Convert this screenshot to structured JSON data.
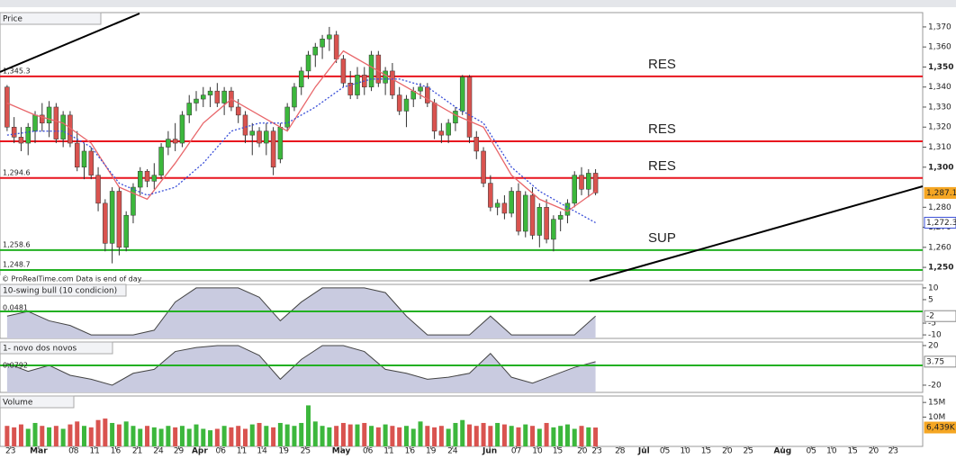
{
  "chart_data": [
    {
      "type": "candlestick",
      "title": "Price",
      "source": "© ProRealTime.com  Data is end of day",
      "xlim": [
        -0.5,
        130.7
      ],
      "ylim": [
        1243.3,
        1376.7
      ],
      "yticks": [
        {
          "value": 1370,
          "label": "1,370"
        },
        {
          "value": 1360,
          "label": "1,360"
        },
        {
          "value": 1350,
          "label": "1,350"
        },
        {
          "value": 1340,
          "label": "1,340"
        },
        {
          "value": 1330,
          "label": "1,330"
        },
        {
          "value": 1320,
          "label": "1,320"
        },
        {
          "value": 1310,
          "label": "1,310"
        },
        {
          "value": 1300,
          "label": "1,300"
        },
        {
          "value": 1280,
          "label": "1,280"
        },
        {
          "value": 1270,
          "label": "1,270"
        },
        {
          "value": 1260,
          "label": "1,260"
        },
        {
          "value": 1250,
          "label": "1,250"
        }
      ],
      "up_color": "#3cb73c",
      "down_color": "#d9534f",
      "candles": [
        [
          1340,
          1341,
          1318,
          1320
        ],
        [
          1320,
          1325,
          1312,
          1315
        ],
        [
          1315,
          1320,
          1308,
          1312
        ],
        [
          1312,
          1322,
          1306,
          1320
        ],
        [
          1318,
          1328,
          1312,
          1326
        ],
        [
          1326,
          1332,
          1318,
          1322
        ],
        [
          1322,
          1333,
          1315,
          1330
        ],
        [
          1330,
          1332,
          1312,
          1314
        ],
        [
          1314,
          1328,
          1310,
          1326
        ],
        [
          1326,
          1328,
          1310,
          1312
        ],
        [
          1312,
          1318,
          1298,
          1300
        ],
        [
          1300,
          1312,
          1294,
          1308
        ],
        [
          1308,
          1310,
          1294,
          1296
        ],
        [
          1296,
          1300,
          1278,
          1282
        ],
        [
          1282,
          1284,
          1258,
          1262
        ],
        [
          1262,
          1290,
          1252,
          1288
        ],
        [
          1288,
          1290,
          1256,
          1260
        ],
        [
          1260,
          1278,
          1258,
          1276
        ],
        [
          1276,
          1292,
          1272,
          1290
        ],
        [
          1290,
          1300,
          1286,
          1298
        ],
        [
          1298,
          1299,
          1290,
          1293
        ],
        [
          1293,
          1302,
          1289,
          1296
        ],
        [
          1296,
          1312,
          1294,
          1310
        ],
        [
          1310,
          1318,
          1306,
          1314
        ],
        [
          1314,
          1322,
          1308,
          1312
        ],
        [
          1312,
          1328,
          1310,
          1326
        ],
        [
          1326,
          1336,
          1322,
          1332
        ],
        [
          1332,
          1338,
          1328,
          1334
        ],
        [
          1334,
          1340,
          1330,
          1336
        ],
        [
          1336,
          1340,
          1330,
          1338
        ],
        [
          1338,
          1342,
          1330,
          1332
        ],
        [
          1332,
          1340,
          1326,
          1338
        ],
        [
          1338,
          1340,
          1328,
          1330
        ],
        [
          1330,
          1334,
          1322,
          1326
        ],
        [
          1326,
          1328,
          1312,
          1316
        ],
        [
          1316,
          1322,
          1306,
          1318
        ],
        [
          1318,
          1320,
          1310,
          1312
        ],
        [
          1312,
          1322,
          1306,
          1318
        ],
        [
          1318,
          1320,
          1296,
          1300
        ],
        [
          1304,
          1322,
          1302,
          1320
        ],
        [
          1320,
          1332,
          1318,
          1330
        ],
        [
          1330,
          1342,
          1328,
          1340
        ],
        [
          1340,
          1350,
          1336,
          1348
        ],
        [
          1348,
          1358,
          1344,
          1356
        ],
        [
          1356,
          1362,
          1350,
          1360
        ],
        [
          1360,
          1366,
          1354,
          1364
        ],
        [
          1364,
          1370,
          1358,
          1366
        ],
        [
          1366,
          1368,
          1352,
          1354
        ],
        [
          1354,
          1356,
          1340,
          1342
        ],
        [
          1342,
          1348,
          1334,
          1336
        ],
        [
          1336,
          1350,
          1334,
          1346
        ],
        [
          1346,
          1350,
          1336,
          1340
        ],
        [
          1340,
          1358,
          1338,
          1356
        ],
        [
          1356,
          1358,
          1340,
          1342
        ],
        [
          1342,
          1350,
          1336,
          1348
        ],
        [
          1348,
          1352,
          1334,
          1336
        ],
        [
          1336,
          1340,
          1326,
          1328
        ],
        [
          1328,
          1336,
          1320,
          1334
        ],
        [
          1334,
          1340,
          1330,
          1338
        ],
        [
          1338,
          1342,
          1334,
          1340
        ],
        [
          1340,
          1342,
          1330,
          1332
        ],
        [
          1332,
          1334,
          1314,
          1318
        ],
        [
          1318,
          1322,
          1312,
          1316
        ],
        [
          1316,
          1324,
          1312,
          1322
        ],
        [
          1322,
          1330,
          1318,
          1328
        ],
        [
          1328,
          1346,
          1326,
          1345
        ],
        [
          1345,
          1346,
          1312,
          1315
        ],
        [
          1315,
          1318,
          1304,
          1308
        ],
        [
          1308,
          1310,
          1290,
          1292
        ],
        [
          1292,
          1296,
          1278,
          1280
        ],
        [
          1280,
          1284,
          1276,
          1282
        ],
        [
          1282,
          1286,
          1274,
          1277
        ],
        [
          1277,
          1290,
          1275,
          1288
        ],
        [
          1288,
          1292,
          1266,
          1268
        ],
        [
          1268,
          1288,
          1265,
          1286
        ],
        [
          1286,
          1290,
          1264,
          1266
        ],
        [
          1266,
          1282,
          1260,
          1280
        ],
        [
          1280,
          1284,
          1262,
          1264
        ],
        [
          1264,
          1276,
          1258,
          1274
        ],
        [
          1274,
          1278,
          1268,
          1276
        ],
        [
          1276,
          1284,
          1272,
          1282
        ],
        [
          1282,
          1298,
          1280,
          1296
        ],
        [
          1296,
          1300,
          1286,
          1289
        ],
        [
          1289,
          1299,
          1285,
          1297
        ],
        [
          1297,
          1299,
          1286,
          1287.14
        ]
      ],
      "series": [
        {
          "color": "#e8666a",
          "style": "solid",
          "x": [
            0,
            4,
            8,
            12,
            16,
            20,
            24,
            28,
            32,
            36,
            40,
            44,
            48,
            52,
            56,
            60,
            64,
            68,
            72,
            76,
            80,
            84
          ],
          "values": [
            1332,
            1326,
            1322,
            1312,
            1290,
            1284,
            1302,
            1322,
            1334,
            1326,
            1318,
            1340,
            1358,
            1350,
            1342,
            1334,
            1326,
            1320,
            1296,
            1284,
            1278,
            1288
          ]
        },
        {
          "color": "#3a4fd8",
          "style": "dotted",
          "x": [
            0,
            4,
            8,
            12,
            16,
            20,
            24,
            28,
            32,
            36,
            40,
            44,
            48,
            52,
            56,
            60,
            64,
            68,
            72,
            76,
            80,
            84
          ],
          "values": [
            1316,
            1318,
            1318,
            1310,
            1292,
            1286,
            1290,
            1302,
            1318,
            1322,
            1322,
            1330,
            1340,
            1344,
            1344,
            1340,
            1330,
            1322,
            1300,
            1288,
            1280,
            1272.3
          ]
        }
      ],
      "levels": [
        {
          "value": 1345.3,
          "label": "1,345.3",
          "note": "RES",
          "color": "#e8141e"
        },
        {
          "value": 1312.9,
          "note": "RES",
          "color": "#e8141e"
        },
        {
          "value": 1294.6,
          "label": "1,294.6",
          "note": "RES",
          "color": "#e8141e"
        },
        {
          "value": 1258.6,
          "label": "1,258.6",
          "note": "SUP",
          "color": "#22b022"
        },
        {
          "value": 1248.7,
          "label": "1,248.7",
          "color": "#22b022"
        }
      ],
      "last_labels": [
        {
          "value": 1287.14,
          "label": "1,287.14",
          "color": "#f5a623"
        },
        {
          "value": 1272.3,
          "label": "1,272.3",
          "color": "#3a4fd8"
        }
      ]
    },
    {
      "type": "area",
      "title": "10-swing bull (10 condicion)",
      "left_label": "0.0481",
      "level": 0,
      "level_color": "#22b022",
      "xlim": [
        -0.5,
        130.7
      ],
      "ylim": [
        -11.5,
        11.5
      ],
      "yticks": [
        10,
        5,
        -5,
        -10
      ],
      "x": [
        0,
        3,
        6,
        9,
        12,
        15,
        18,
        21,
        24,
        27,
        30,
        33,
        36,
        39,
        42,
        45,
        48,
        51,
        54,
        57,
        60,
        63,
        66,
        69,
        72,
        75,
        78,
        81,
        84
      ],
      "values": [
        -2,
        0,
        -4,
        -6,
        -10,
        -10,
        -10,
        -8,
        4,
        10,
        10,
        10,
        6,
        -4,
        4,
        10,
        10,
        10,
        8,
        -2,
        -10,
        -10,
        -10,
        -2,
        -10,
        -10,
        -10,
        -10,
        -2
      ],
      "last_label": {
        "value": -2,
        "label": "-2"
      }
    },
    {
      "type": "area",
      "title": "1- novo dos novos",
      "left_label": "0.0792",
      "level": 0,
      "level_color": "#22b022",
      "xlim": [
        -0.5,
        130.7
      ],
      "ylim": [
        -27.3,
        23.6
      ],
      "yticks": [
        20,
        -20
      ],
      "x": [
        0,
        3,
        6,
        9,
        12,
        15,
        18,
        21,
        24,
        27,
        30,
        33,
        36,
        39,
        42,
        45,
        48,
        51,
        54,
        57,
        60,
        63,
        66,
        69,
        72,
        75,
        78,
        81,
        84
      ],
      "values": [
        2,
        -6,
        0,
        -10,
        -14,
        -20,
        -8,
        -4,
        14,
        18,
        20,
        20,
        10,
        -14,
        6,
        20,
        20,
        14,
        -4,
        -8,
        -14,
        -12,
        -8,
        12,
        -12,
        -18,
        -10,
        -2,
        3.75
      ],
      "last_label": {
        "value": 3.75,
        "label": "3.75"
      }
    },
    {
      "type": "volume",
      "title": "Volume",
      "xlim": [
        -0.5,
        130.7
      ],
      "ylim": [
        0,
        17.2
      ],
      "yticks": [
        {
          "value": 15,
          "label": "15M"
        },
        {
          "value": 10,
          "label": "10M"
        }
      ],
      "values": [
        7,
        6.5,
        7.5,
        6,
        8,
        7,
        6.5,
        7,
        6,
        7.5,
        8.5,
        7,
        6.5,
        9,
        9.5,
        8,
        7.5,
        8.5,
        7,
        6,
        7,
        6.5,
        6,
        7,
        6.5,
        7,
        6,
        7.5,
        6,
        5.5,
        6,
        7,
        6.5,
        7,
        6,
        7.5,
        8,
        7,
        6.5,
        8,
        7.5,
        7,
        8,
        14,
        8.5,
        7,
        6.5,
        7,
        8,
        7.5,
        7.5,
        8,
        7,
        6.5,
        7.5,
        7,
        6.5,
        7,
        6,
        8.5,
        7,
        6.5,
        7,
        6,
        8,
        9,
        7.5,
        7,
        8,
        7,
        8,
        7.5,
        7,
        6.5,
        7.5,
        7,
        6,
        8,
        6.5,
        7,
        7.5,
        6,
        7,
        6.5,
        6.439
      ],
      "last_label": {
        "value": 6.439,
        "label": "6,439K"
      },
      "xticks": [
        {
          "value": 0.5,
          "label": "23"
        },
        {
          "value": 4.5,
          "label": "Mar"
        },
        {
          "value": 9.5,
          "label": "08"
        },
        {
          "value": 12.5,
          "label": "11"
        },
        {
          "value": 15.5,
          "label": "16"
        },
        {
          "value": 18.6,
          "label": "21"
        },
        {
          "value": 21.6,
          "label": "24"
        },
        {
          "value": 24.5,
          "label": "29"
        },
        {
          "value": 27.5,
          "label": "Apr"
        },
        {
          "value": 30.5,
          "label": "06"
        },
        {
          "value": 33.5,
          "label": "11"
        },
        {
          "value": 36.4,
          "label": "14"
        },
        {
          "value": 39.5,
          "label": "19"
        },
        {
          "value": 42.6,
          "label": "25"
        },
        {
          "value": 47.7,
          "label": "May"
        },
        {
          "value": 51.5,
          "label": "06"
        },
        {
          "value": 54.5,
          "label": "11"
        },
        {
          "value": 57.5,
          "label": "16"
        },
        {
          "value": 60.5,
          "label": "19"
        },
        {
          "value": 63.6,
          "label": "24"
        },
        {
          "value": 68.9,
          "label": "Jun"
        },
        {
          "value": 72.7,
          "label": "07"
        },
        {
          "value": 75.7,
          "label": "10"
        },
        {
          "value": 78.6,
          "label": "15"
        },
        {
          "value": 82.1,
          "label": "20"
        },
        {
          "value": 84.2,
          "label": "23"
        },
        {
          "value": 87.5,
          "label": "28"
        },
        {
          "value": 90.9,
          "label": "Jul"
        },
        {
          "value": 93.9,
          "label": "05"
        },
        {
          "value": 96.8,
          "label": "10"
        },
        {
          "value": 99.8,
          "label": "15"
        },
        {
          "value": 102.8,
          "label": "20"
        },
        {
          "value": 105.8,
          "label": "25"
        },
        {
          "value": 110.7,
          "label": "Aug"
        },
        {
          "value": 114.8,
          "label": "05"
        },
        {
          "value": 117.7,
          "label": "10"
        },
        {
          "value": 120.7,
          "label": "15"
        },
        {
          "value": 123.7,
          "label": "20"
        },
        {
          "value": 126.5,
          "label": "23"
        }
      ]
    }
  ]
}
